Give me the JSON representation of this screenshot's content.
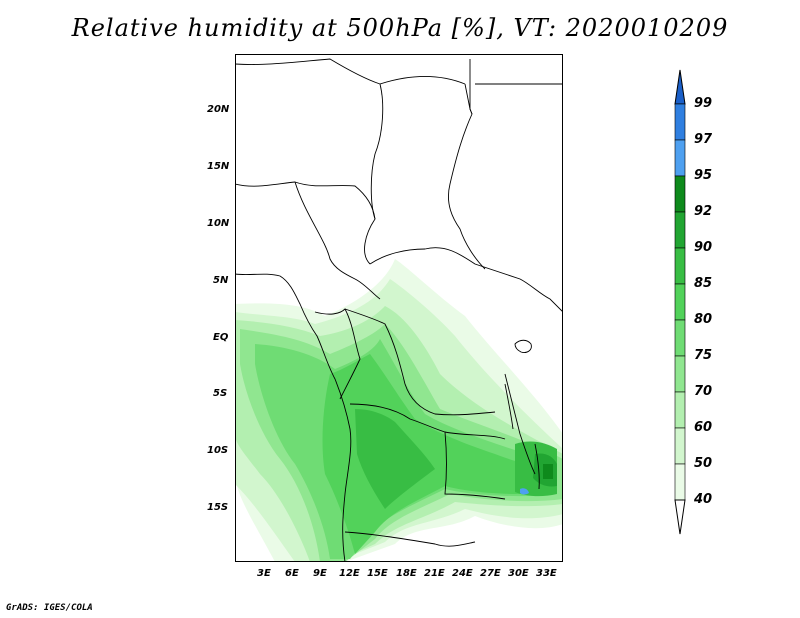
{
  "title": "Relative humidity at 500hPa [%], VT: 2020010209",
  "credit": "GrADS: IGES/COLA",
  "lat_labels": [
    "20N",
    "15N",
    "10N",
    "5N",
    "EQ",
    "5S",
    "10S",
    "15S"
  ],
  "lon_labels": [
    "3E",
    "6E",
    "9E",
    "12E",
    "15E",
    "18E",
    "21E",
    "24E",
    "27E",
    "30E",
    "33E"
  ],
  "colorbar": {
    "levels": [
      "99",
      "97",
      "95",
      "92",
      "90",
      "85",
      "80",
      "75",
      "70",
      "60",
      "50",
      "40"
    ],
    "colors": {
      "99": "#1a5fc8",
      "97": "#2f7fe0",
      "95": "#4ea0f0",
      "92": "#0e8a1c",
      "90": "#21a532",
      "85": "#38bd44",
      "80": "#52d25a",
      "75": "#6fdc74",
      "70": "#90e690",
      "60": "#b3efb0",
      "50": "#d2f6ce",
      "40": "#eafbe7"
    }
  }
}
